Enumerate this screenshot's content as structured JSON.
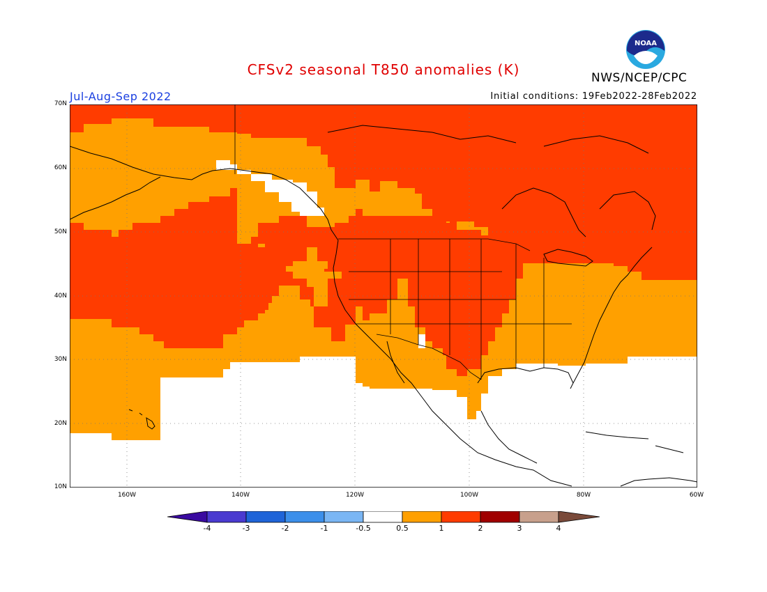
{
  "header": {
    "title": "CFSv2 seasonal T850 anomalies (K)",
    "organization": "NWS/NCEP/CPC",
    "period": "Jul-Aug-Sep 2022",
    "initial_conditions": "Initial conditions: 19Feb2022-28Feb2022",
    "logo_text": "NOAA"
  },
  "axes": {
    "lat_labels": [
      "70N",
      "60N",
      "50N",
      "40N",
      "30N",
      "20N",
      "10N"
    ],
    "lon_labels": [
      "160W",
      "140W",
      "120W",
      "100W",
      "80W",
      "60W"
    ]
  },
  "legend": {
    "labels": [
      "-4",
      "-3",
      "-2",
      "-1",
      "-0.5",
      "0.5",
      "1",
      "2",
      "3",
      "4"
    ],
    "colors": [
      "#3a0aa0",
      "#4a3ad0",
      "#1f64d8",
      "#3c8fea",
      "#7ab6f4",
      "#ffffff",
      "#ffa000",
      "#ff3c00",
      "#a00000",
      "#c8a08c",
      "#7a4a3a"
    ]
  },
  "anomaly_colors": {
    "range_0_5_to_1": "#ffa000",
    "range_1_to_2": "#ff3c00",
    "neutral": "#ffffff"
  }
}
